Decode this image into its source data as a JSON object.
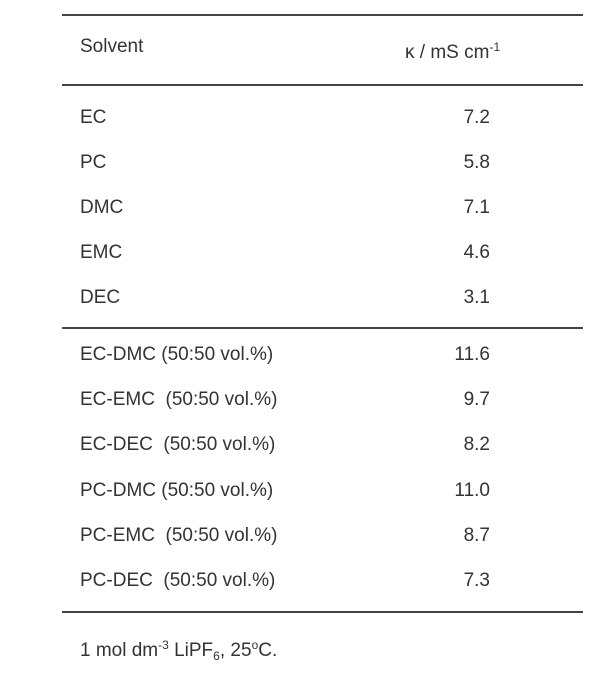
{
  "header": {
    "solvent": "Solvent",
    "unit": "κ / mS cm",
    "unit_sup": "-1"
  },
  "groups": [
    [
      [
        "EC",
        "7.2"
      ],
      [
        "PC",
        "5.8"
      ],
      [
        "DMC",
        "7.1"
      ],
      [
        "EMC",
        "4.6"
      ],
      [
        "DEC",
        "3.1"
      ]
    ],
    [
      [
        "EC-DMC (50:50 vol.%)",
        "11.6"
      ],
      [
        "EC-EMC  (50:50 vol.%)",
        "9.7"
      ],
      [
        "EC-DEC  (50:50 vol.%)",
        "8.2"
      ],
      [
        "PC-DMC (50:50 vol.%)",
        "11.0"
      ],
      [
        "PC-EMC  (50:50 vol.%)",
        "8.7"
      ],
      [
        "PC-DEC  (50:50 vol.%)",
        "7.3"
      ]
    ]
  ],
  "footnote": [
    "1 mol dm",
    "-3",
    " LiPF",
    "6",
    ", 25",
    "o",
    "C."
  ]
}
